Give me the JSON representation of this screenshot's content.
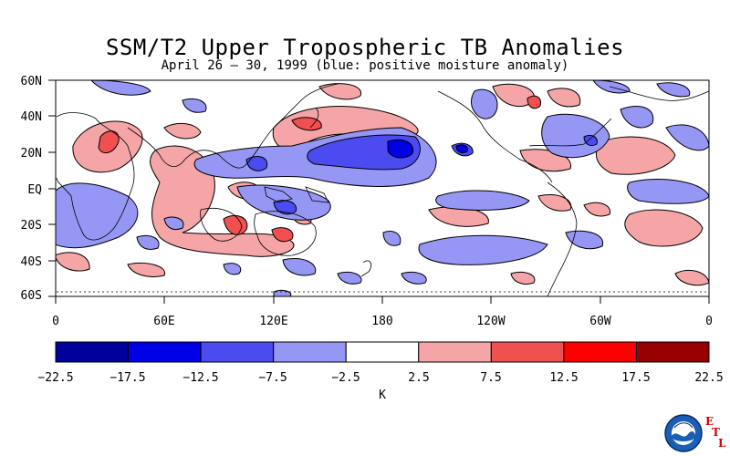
{
  "title": "SSM/T2 Upper Tropospheric TB Anomalies",
  "subtitle": "April 26 – 30, 1999 (blue: positive moisture anomaly)",
  "y_ticks": [
    "60N",
    "40N",
    "20N",
    "EQ",
    "20S",
    "40S",
    "60S"
  ],
  "x_ticks": [
    "0",
    "60E",
    "120E",
    "180",
    "120W",
    "60W",
    "0"
  ],
  "colorbar": {
    "unit": "K",
    "levels": [
      "−22.5",
      "−17.5",
      "−12.5",
      "−7.5",
      "−2.5",
      "2.5",
      "7.5",
      "12.5",
      "17.5",
      "22.5"
    ],
    "colors": [
      "#00009b",
      "#0000e6",
      "#4b4bf0",
      "#9696f5",
      "#ffffff",
      "#f5a5a5",
      "#f05050",
      "#ff0000",
      "#960000"
    ]
  },
  "logo": {
    "name": "NOAA",
    "letters": [
      "E",
      "T",
      "L"
    ]
  },
  "colors": {
    "blue_light": "#9696f5",
    "blue_mid": "#4b4bf0",
    "blue_dark": "#0000e6",
    "red_light": "#f5a5a5",
    "red_mid": "#f05050",
    "red_dark": "#e60000"
  }
}
